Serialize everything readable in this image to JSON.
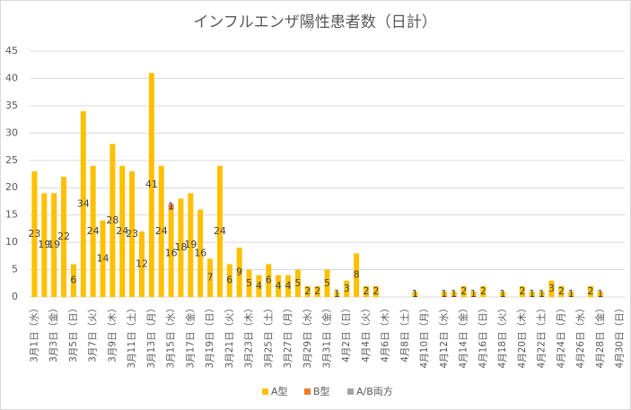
{
  "chart_data": {
    "type": "stacked_bar",
    "title": "インフルエンザ陽性患者数（日計）",
    "categories": [
      "3月1日（水）",
      null,
      "3月3日（金）",
      null,
      "3月5日（日）",
      null,
      "3月7日（火）",
      null,
      "3月9日（木）",
      null,
      "3月11日（土）",
      null,
      "3月13日（月）",
      null,
      "3月15日（水）",
      null,
      "3月17日（金）",
      null,
      "3月19日（日）",
      null,
      "3月21日（火）",
      null,
      "3月23日（木）",
      null,
      "3月25日（土）",
      null,
      "3月27日（月）",
      null,
      "3月29日（水）",
      null,
      "3月31日（金）",
      null,
      "4月2日（日）",
      null,
      "4月4日（火）",
      null,
      "4月6日（木）",
      null,
      "4月8日（土）",
      null,
      "4月10日（月）",
      null,
      "4月12日（水）",
      null,
      "4月14日（金）",
      null,
      "4月16日（日）",
      null,
      "4月18日（火）",
      null,
      "4月20日（木）",
      null,
      "4月22日（土）",
      null,
      "4月24日（月）",
      null,
      "4月26日（水）",
      null,
      "4月28日（金）",
      null,
      "4月30日（日）"
    ],
    "series": [
      {
        "name": "A型",
        "color": "#ffc000",
        "values": [
          23,
          19,
          19,
          22,
          6,
          34,
          24,
          14,
          28,
          24,
          23,
          12,
          41,
          24,
          16,
          18,
          19,
          16,
          7,
          24,
          6,
          9,
          5,
          4,
          6,
          4,
          4,
          5,
          2,
          2,
          5,
          1,
          3,
          8,
          2,
          2,
          0,
          0,
          0,
          1,
          0,
          0,
          1,
          1,
          2,
          1,
          2,
          0,
          1,
          0,
          2,
          1,
          1,
          3,
          2,
          1,
          0,
          2,
          1,
          0,
          0
        ]
      },
      {
        "name": "B型",
        "color": "#ed7d31",
        "values": [
          0,
          0,
          0,
          0,
          0,
          0,
          0,
          0,
          0,
          0,
          0,
          0,
          0,
          0,
          1,
          0,
          0,
          0,
          0,
          0,
          0,
          0,
          0,
          0,
          0,
          0,
          0,
          0,
          0,
          0,
          0,
          0,
          0,
          0,
          0,
          0,
          0,
          0,
          0,
          0,
          0,
          0,
          0,
          0,
          0,
          0,
          0,
          0,
          0,
          0,
          0,
          0,
          0,
          0,
          0,
          0,
          0,
          0,
          0,
          0,
          0
        ]
      },
      {
        "name": "A/B両方",
        "color": "#a5a5a5",
        "values": [
          0,
          0,
          0,
          0,
          0,
          0,
          0,
          0,
          0,
          0,
          0,
          0,
          0,
          0,
          0,
          0,
          0,
          0,
          0,
          0,
          0,
          0,
          0,
          0,
          0,
          0,
          0,
          0,
          0,
          0,
          0,
          0,
          0,
          0,
          0,
          0,
          0,
          0,
          0,
          0,
          0,
          0,
          0,
          0,
          0,
          0,
          0,
          0,
          0,
          0,
          0,
          0,
          0,
          0,
          0,
          0,
          0,
          0,
          0,
          0,
          0
        ]
      }
    ],
    "ylim": [
      0,
      45
    ],
    "yticks": [
      0,
      5,
      10,
      15,
      20,
      25,
      30,
      35,
      40,
      45
    ],
    "grid": true,
    "legend": "bottom"
  }
}
